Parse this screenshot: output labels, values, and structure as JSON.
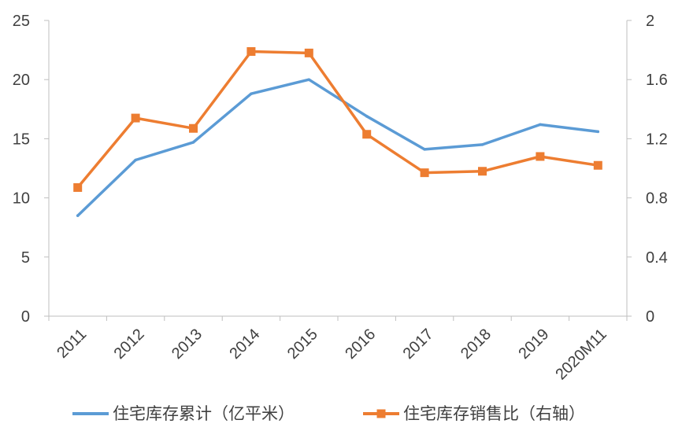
{
  "chart_data": {
    "type": "line",
    "title": "",
    "xlabel": "",
    "ylabel": "",
    "ylabel_right": "",
    "categories": [
      "2011",
      "2012",
      "2013",
      "2014",
      "2015",
      "2016",
      "2017",
      "2018",
      "2019",
      "2020M11"
    ],
    "ylim": [
      0,
      25
    ],
    "y_ticks": [
      "0",
      "5",
      "10",
      "15",
      "20",
      "25"
    ],
    "y_tick_values": [
      0,
      5,
      10,
      15,
      20,
      25
    ],
    "ylim_right": [
      0,
      2
    ],
    "y_right_ticks": [
      "0",
      "0.4",
      "0.8",
      "1.2",
      "1.6",
      "2"
    ],
    "y_right_tick_values": [
      0,
      0.4,
      0.8,
      1.2,
      1.6,
      2
    ],
    "grid": false,
    "legend_position": "bottom",
    "series": [
      {
        "name": "住宅库存累计（亿平米）",
        "axis": "left",
        "color": "#5B9BD5",
        "marker": "none",
        "values": [
          8.5,
          13.2,
          14.7,
          18.8,
          20.0,
          16.9,
          14.1,
          14.5,
          16.2,
          15.6
        ]
      },
      {
        "name": "住宅库存销售比（右轴）",
        "axis": "right",
        "color": "#ED7D31",
        "marker": "square",
        "values": [
          0.87,
          1.34,
          1.27,
          1.79,
          1.78,
          1.23,
          0.97,
          0.98,
          1.08,
          1.02
        ]
      }
    ]
  }
}
